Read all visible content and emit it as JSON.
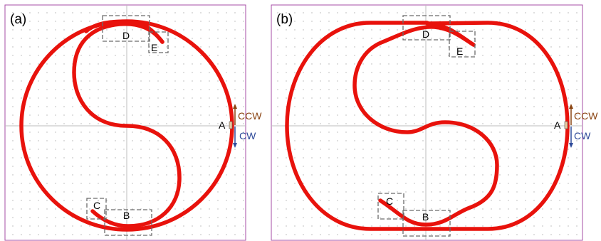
{
  "panels": [
    {
      "label": "(a)",
      "boxes": {
        "D": "D",
        "E": "E",
        "C": "C",
        "B": "B"
      },
      "marker": "A",
      "ccw": "CCW",
      "cw": "CW"
    },
    {
      "label": "(b)",
      "boxes": {
        "D": "D",
        "E": "E",
        "C": "C",
        "B": "B"
      },
      "marker": "A",
      "ccw": "CCW",
      "cw": "CW"
    }
  ],
  "colors": {
    "track": "#e8120c",
    "frame": "#a64ca6",
    "ccw": "#8b4513",
    "cw": "#2f4b9a",
    "dashed_box": "#6b6b6b"
  }
}
